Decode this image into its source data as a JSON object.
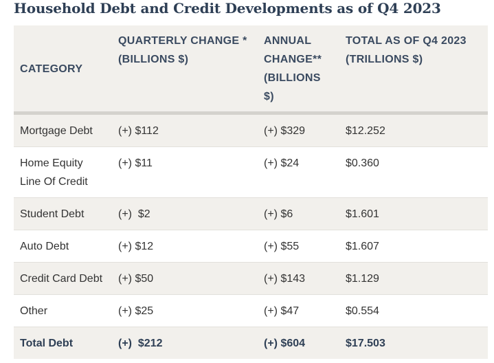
{
  "title": "Household Debt and Credit Developments as of Q4 2023",
  "headers": {
    "category": "CATEGORY",
    "quarterly": "QUARTERLY CHANGE * (BILLIONS $)",
    "annual": "ANNUAL CHANGE** (BILLIONS $)",
    "total": "TOTAL AS OF Q4 2023 (TRILLIONS $)"
  },
  "rows": [
    {
      "category": "Mortgage Debt",
      "quarterly": "(+) $112",
      "annual": "(+) $329",
      "total": "$12.252"
    },
    {
      "category": "Home Equity Line Of Credit",
      "quarterly": "(+) $11",
      "annual": "(+) $24",
      "total": "$0.360"
    },
    {
      "category": "Student Debt",
      "quarterly": "(+)  $2",
      "annual": "(+) $6",
      "total": "$1.601"
    },
    {
      "category": "Auto Debt",
      "quarterly": "(+) $12",
      "annual": "(+) $55",
      "total": "$1.607"
    },
    {
      "category": "Credit Card Debt",
      "quarterly": "(+) $50",
      "annual": "(+) $143",
      "total": "$1.129"
    },
    {
      "category": "Other",
      "quarterly": "(+) $25",
      "annual": "(+) $47",
      "total": "$0.554"
    }
  ],
  "total_row": {
    "category": "Total Debt",
    "quarterly": "(+)  $212",
    "annual": "(+) $604",
    "total": "$17.503"
  }
}
